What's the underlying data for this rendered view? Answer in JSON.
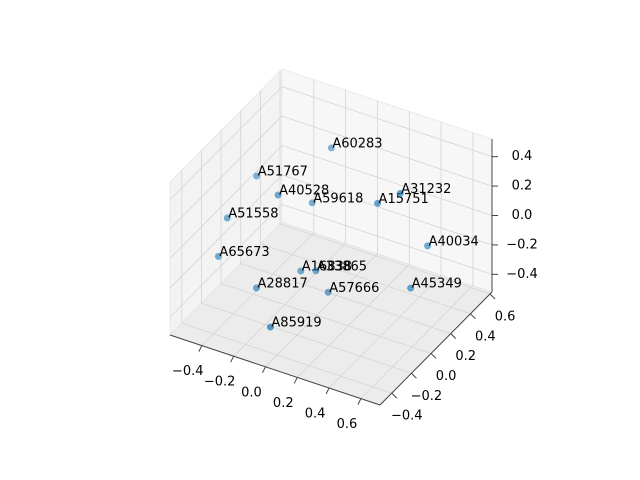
{
  "chart_data": {
    "type": "scatter3d",
    "color": "#1f77b4",
    "labels": [
      "A60283",
      "A51767",
      "A40528",
      "A59618",
      "A15751",
      "A31232",
      "A51558",
      "A40034",
      "A65673",
      "A16838",
      "A33865",
      "A28817",
      "A57666",
      "A45349",
      "A85919"
    ],
    "x": [
      -0.08,
      -0.37,
      -0.18,
      -0.12,
      0.26,
      0.39,
      -0.45,
      0.42,
      -0.45,
      -0.13,
      -0.06,
      -0.26,
      0.03,
      0.4,
      -0.08
    ],
    "y": [
      0.28,
      -0.01,
      -0.1,
      0.15,
      0.2,
      0.22,
      -0.18,
      0.45,
      -0.27,
      0.05,
      0.09,
      -0.19,
      0.07,
      0.31,
      -0.34
    ],
    "z": [
      0.4,
      0.3,
      0.3,
      0.1,
      0.2,
      0.3,
      0.1,
      -0.2,
      -0.1,
      -0.3,
      -0.3,
      -0.3,
      -0.4,
      -0.4,
      -0.4
    ],
    "xlim": [
      -0.6,
      0.72
    ],
    "ylim": [
      -0.52,
      0.62
    ],
    "zlim": [
      -0.52,
      0.52
    ],
    "xticks": [
      {
        "value": -0.4,
        "label": "−0.4"
      },
      {
        "value": -0.2,
        "label": "−0.2"
      },
      {
        "value": 0.0,
        "label": "0.0"
      },
      0.2,
      0.4,
      0.6
    ],
    "yticks": [
      {
        "value": -0.4,
        "label": "−0.4"
      },
      {
        "value": -0.2,
        "label": "−0.2"
      },
      {
        "value": 0.0,
        "label": "0.0"
      },
      0.2,
      0.4,
      0.6
    ],
    "zticks": [
      {
        "value": -0.4,
        "label": "−0.4"
      },
      {
        "value": -0.2,
        "label": "−0.2"
      },
      {
        "value": 0.0,
        "label": "0.0"
      },
      0.2,
      0.4
    ],
    "grid": true
  }
}
